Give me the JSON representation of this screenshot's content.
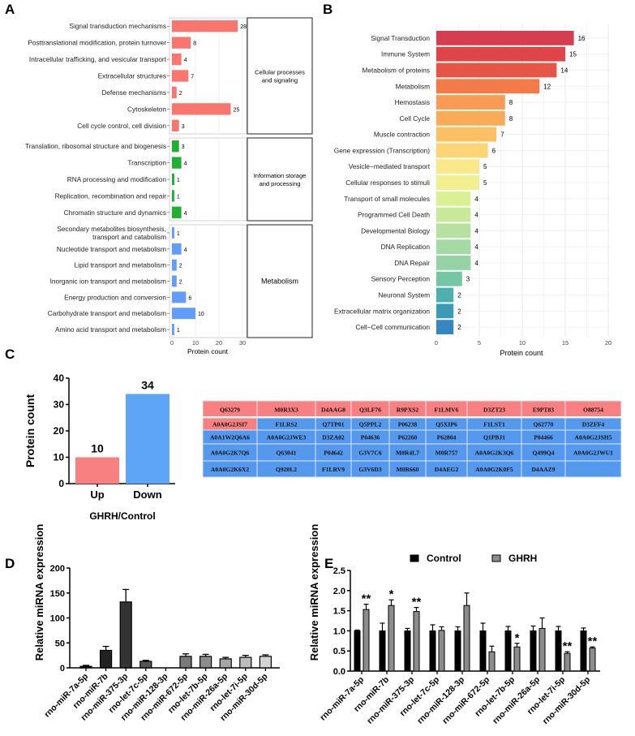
{
  "panel_labels": {
    "a": "A",
    "b": "B",
    "c": "C",
    "d": "D",
    "e": "E"
  },
  "chart_data": [
    {
      "id": "A",
      "type": "bar",
      "orientation": "horizontal",
      "xlabel": "Protein count",
      "xticks": [
        "0",
        "10",
        "20",
        "30"
      ],
      "xlim": [
        0,
        32
      ],
      "groups": [
        {
          "name": "Cellular processes and signaling",
          "color": "#f8766d",
          "categories": [
            "Signal transduction mechanisms",
            "Posttranslational modification, protein turnover",
            "Intracellular trafficking, and vesicular transport",
            "Extracellular structures",
            "Defense mechanisms",
            "Cytoskeleton",
            "Cell cycle control, cell division"
          ],
          "values": [
            28,
            8,
            4,
            7,
            2,
            25,
            3
          ],
          "labels": [
            "28",
            "8",
            "4",
            "7",
            "2",
            "25",
            "3"
          ]
        },
        {
          "name": "Information storage and processing",
          "color": "#1fb030",
          "categories": [
            "Translation, ribosomal structure and biogenesis",
            "Transcription",
            "RNA processing and modification",
            "Replication, recombination and repair",
            "Chromatin structure and dynamics"
          ],
          "values": [
            3,
            4,
            1,
            1,
            4
          ],
          "labels": [
            "3",
            "4",
            "1",
            "1",
            "4"
          ]
        },
        {
          "name": "Metabolism",
          "color": "#619cff",
          "categories": [
            "Secondary metabolites biosynthesis,|transport and catabolism",
            "Nucleotide transport and metabolism",
            "Lipid transport and metabolism",
            "Inorganic ion transport and metabolism",
            "Energy production and conversion",
            "Carbohydrate transport and metabolism",
            "Amino acid transport and metabolism"
          ],
          "values": [
            1,
            4,
            2,
            2,
            6,
            10,
            1
          ],
          "labels": [
            "1",
            "4",
            "2",
            "2",
            "6",
            "10",
            "1"
          ]
        }
      ]
    },
    {
      "id": "B",
      "type": "bar",
      "orientation": "horizontal",
      "xlabel": "Protein count",
      "xticks": [
        "0",
        "5",
        "10",
        "15",
        "20"
      ],
      "xlim": [
        0,
        20
      ],
      "categories": [
        "Signal Transduction",
        "Immune System",
        "Metabolism of proteins",
        "Metabolism",
        "Hemostasis",
        "Cell Cycle",
        "Muscle contraction",
        "Gene expression (Transcription)",
        "Vesicle−mediated transport",
        "Cellular responses to stimuli",
        "Transport of small molecules",
        "Programmed Cell Death",
        "Developmental Biology",
        "DNA Replication",
        "DNA Repair",
        "Sensory Perception",
        "Neuronal System",
        "Extracellular matrix organization",
        "Cell−Cell communication"
      ],
      "values": [
        16,
        15,
        14,
        12,
        8,
        8,
        7,
        6,
        5,
        5,
        4,
        4,
        4,
        4,
        4,
        3,
        2,
        2,
        2
      ],
      "labels": [
        "16",
        "15",
        "14",
        "12",
        "8",
        "8",
        "7",
        "6",
        "5",
        "5",
        "4",
        "4",
        "4",
        "4",
        "4",
        "3",
        "2",
        "2",
        "2"
      ],
      "colors": [
        "#d53e4f",
        "#dd4549",
        "#e65545",
        "#f47a4a",
        "#f99b52",
        "#fbab58",
        "#fcc062",
        "#fdd574",
        "#f9e98a",
        "#f1ef8f",
        "#dbef94",
        "#c8e89a",
        "#b7e1a0",
        "#a5daa4",
        "#93d3a4",
        "#74c6a5",
        "#4eb0ae",
        "#3b9bb5",
        "#3488bd"
      ]
    },
    {
      "id": "C",
      "type": "bar",
      "categories": [
        "Up",
        "Down"
      ],
      "values": [
        10,
        34
      ],
      "labels": [
        "10",
        "34"
      ],
      "colors": [
        "#f88080",
        "#5ea5f7"
      ],
      "ylabel": "Protein count",
      "xlabel": "GHRH/Control",
      "yticks": [
        "0",
        "10",
        "20",
        "30",
        "40"
      ],
      "ylim": [
        0,
        40
      ]
    },
    {
      "id": "C-table",
      "type": "table",
      "up_color": "#f88080",
      "down_color": "#5599ee",
      "rows": [
        [
          "Q63279",
          "M0R3X3",
          "D4AAG8",
          "Q3LF76",
          "R9PXS2",
          "F1LMV6",
          "D3ZT23",
          "E9PT83",
          "O88754"
        ],
        [
          "A0A0G2JSI7",
          "F1LRS2",
          "Q7TP01",
          "Q5PPL2",
          "P06238",
          "Q5XIP6",
          "F1LST1",
          "Q62770",
          "D3ZFF4"
        ],
        [
          "A0A1W2Q6A6",
          "A0A0G2JWE3",
          "D3ZA02",
          "P04636",
          "P62260",
          "P62804",
          "Q1PBJ1",
          "P04466",
          "A0A0G2JSH5"
        ],
        [
          "A0A0G2K7Q6",
          "Q63041",
          "P04642",
          "G3V7C6",
          "M0R4L7",
          "M0R757",
          "A0A0G2K3Q6",
          "Q499Q4",
          "A0A0G2JWU1"
        ],
        [
          "A0A0G2K6X2",
          "Q920L2",
          "F1LRV9",
          "G3V6D3",
          "M0R660",
          "D4AEG2",
          "A0A0G2K0F5",
          "D4AAZ9",
          ""
        ]
      ],
      "up_count": 10
    },
    {
      "id": "D",
      "type": "bar",
      "categories": [
        "rno-miR-7a-5p",
        "rno-miR-7b",
        "rno-miR-375-3p",
        "rno-let-7c-5p",
        "rno-miR-128-3p",
        "rno-miR-672-5p",
        "rno-let-7b-5p",
        "rno-miR-26a-5p",
        "rno-let-7i-5p",
        "rno-miR-30d-5p"
      ],
      "values": [
        3,
        35,
        132,
        13,
        0,
        23,
        23,
        18,
        21,
        23
      ],
      "error_upper": [
        5,
        43,
        157,
        15,
        0,
        28,
        27,
        21,
        25,
        26
      ],
      "colors": [
        "#111111",
        "#222222",
        "#333333",
        "#555555",
        "#666666",
        "#7a7a7a",
        "#8c8c8c",
        "#a6a6a6",
        "#bdbdbd",
        "#d4d4d4"
      ],
      "ylabel": "Relative miRNA expression",
      "yticks": [
        "0",
        "50",
        "100",
        "150",
        "200"
      ],
      "ylim": [
        0,
        200
      ]
    },
    {
      "id": "E",
      "type": "bar",
      "categories": [
        "rno-miR-7a-5p",
        "rno-miR-7b",
        "rno-miR-375-3p",
        "rno-let-7c-5p",
        "rno-miR-128-3p",
        "rno-miR-672-5p",
        "rno-let-7b-5p",
        "rno-miR-26a-5p",
        "rno-let-7i-5p",
        "rno-miR-30d-5p"
      ],
      "series": [
        {
          "name": "Control",
          "color": "#000000",
          "values": [
            1.0,
            1.0,
            1.0,
            1.0,
            1.0,
            1.0,
            1.0,
            1.0,
            1.0,
            1.0
          ],
          "error_upper": [
            1.02,
            1.19,
            1.06,
            1.15,
            1.1,
            1.19,
            1.11,
            1.12,
            1.11,
            1.07
          ]
        },
        {
          "name": "GHRH",
          "color": "#8c8c8c",
          "values": [
            1.53,
            1.63,
            1.48,
            1.01,
            1.63,
            0.48,
            0.6,
            1.06,
            0.44,
            0.57
          ],
          "error_upper": [
            1.66,
            1.77,
            1.58,
            1.1,
            1.94,
            0.62,
            0.69,
            1.32,
            0.48,
            0.6
          ]
        }
      ],
      "significance": [
        "**",
        "*",
        "**",
        "",
        "",
        "",
        "*",
        "",
        "**",
        "**"
      ],
      "ylabel": "Relative miRNA expression",
      "yticks": [
        "0.0",
        "0.5",
        "1.0",
        "1.5",
        "2.0",
        "2.5"
      ],
      "ylim": [
        0,
        2.5
      ],
      "legend": "top"
    }
  ]
}
